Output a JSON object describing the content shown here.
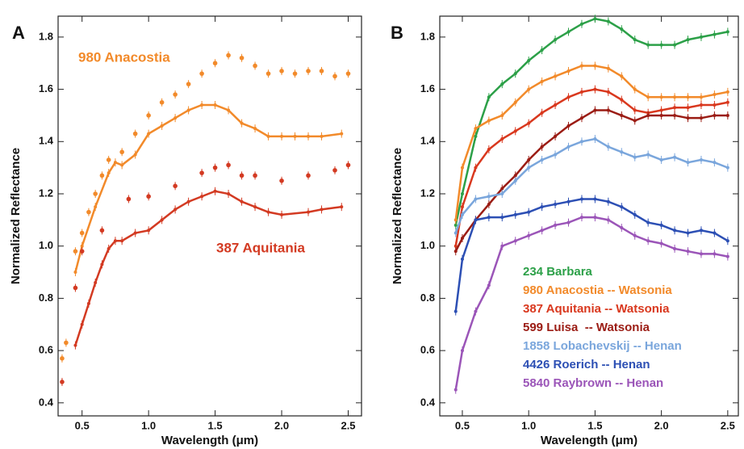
{
  "chart_data": [
    {
      "type": "line",
      "panel_label": "A",
      "xlabel": "Wavelength (μm)",
      "ylabel": "Normalized Reflectance",
      "xlim": [
        0.32,
        2.6
      ],
      "ylim": [
        0.35,
        1.88
      ],
      "xticks": [
        0.5,
        {
          "value": 1,
          "label": "1.0"
        },
        1.5,
        {
          "value": 2,
          "label": "2.0"
        },
        2.5
      ],
      "yticks": [
        0.4,
        0.6,
        0.8,
        {
          "value": 1,
          "label": "1.0"
        },
        1.2,
        1.4,
        1.6,
        1.8
      ],
      "series": [
        {
          "name": "980 Anacostia",
          "color": "#f28a2a",
          "line": false,
          "x": [
            0.35,
            0.38,
            0.45,
            0.5,
            0.55,
            0.6,
            0.65,
            0.7,
            0.8,
            0.9,
            1.0,
            1.1,
            1.2,
            1.3,
            1.4,
            1.5,
            1.6,
            1.7,
            1.8,
            1.9,
            2.0,
            2.1,
            2.2,
            2.3,
            2.4,
            2.5
          ],
          "values": [
            0.57,
            0.63,
            0.98,
            1.05,
            1.13,
            1.2,
            1.27,
            1.33,
            1.36,
            1.43,
            1.5,
            1.55,
            1.58,
            1.62,
            1.66,
            1.7,
            1.73,
            1.72,
            1.69,
            1.66,
            1.67,
            1.66,
            1.67,
            1.67,
            1.65,
            1.66
          ]
        },
        {
          "color": "#f28a2a",
          "line": true,
          "x": [
            0.45,
            0.5,
            0.6,
            0.7,
            0.75,
            0.8,
            0.9,
            1.0,
            1.1,
            1.2,
            1.3,
            1.4,
            1.5,
            1.6,
            1.7,
            1.8,
            1.9,
            2.0,
            2.1,
            2.2,
            2.3,
            2.45
          ],
          "values": [
            0.9,
            1.0,
            1.15,
            1.28,
            1.32,
            1.31,
            1.35,
            1.43,
            1.46,
            1.49,
            1.52,
            1.54,
            1.54,
            1.52,
            1.47,
            1.45,
            1.42,
            1.42,
            1.42,
            1.42,
            1.42,
            1.43
          ]
        },
        {
          "color": "#d33a22",
          "line": false,
          "x": [
            0.35,
            0.45,
            0.5,
            0.65,
            0.85,
            1.0,
            1.2,
            1.4,
            1.5,
            1.6,
            1.7,
            1.8,
            2.0,
            2.2,
            2.4,
            2.5
          ],
          "values": [
            0.48,
            0.84,
            0.98,
            1.06,
            1.18,
            1.19,
            1.23,
            1.28,
            1.3,
            1.31,
            1.27,
            1.27,
            1.25,
            1.27,
            1.29,
            1.31
          ]
        },
        {
          "name": "387 Aquitania",
          "color": "#d33a22",
          "line": true,
          "x": [
            0.45,
            0.5,
            0.55,
            0.6,
            0.65,
            0.7,
            0.75,
            0.8,
            0.9,
            1.0,
            1.1,
            1.2,
            1.3,
            1.4,
            1.5,
            1.6,
            1.7,
            1.8,
            1.9,
            2.0,
            2.2,
            2.3,
            2.45
          ],
          "values": [
            0.62,
            0.7,
            0.78,
            0.86,
            0.93,
            0.99,
            1.02,
            1.02,
            1.05,
            1.06,
            1.1,
            1.14,
            1.17,
            1.19,
            1.21,
            1.2,
            1.17,
            1.15,
            1.13,
            1.12,
            1.13,
            1.14,
            1.15
          ]
        }
      ]
    },
    {
      "type": "line",
      "panel_label": "B",
      "xlabel": "Wavelength (μm)",
      "ylabel": "Normalized Reflectance",
      "xlim": [
        0.33,
        2.58
      ],
      "ylim": [
        0.35,
        1.88
      ],
      "xticks": [
        0.5,
        {
          "value": 1,
          "label": "1.0"
        },
        1.5,
        {
          "value": 2,
          "label": "2.0"
        },
        2.5
      ],
      "yticks": [
        0.4,
        0.6,
        0.8,
        {
          "value": 1,
          "label": "1.0"
        },
        1.2,
        1.4,
        1.6,
        1.8
      ],
      "x": [
        0.45,
        0.5,
        0.6,
        0.7,
        0.8,
        0.9,
        1.0,
        1.1,
        1.2,
        1.3,
        1.4,
        1.5,
        1.6,
        1.7,
        1.8,
        1.9,
        2.0,
        2.1,
        2.2,
        2.3,
        2.4,
        2.5
      ],
      "series": [
        {
          "name": "234 Barbara",
          "color": "#2ca048",
          "line": true,
          "values": [
            1.08,
            1.2,
            1.42,
            1.57,
            1.62,
            1.66,
            1.71,
            1.75,
            1.79,
            1.82,
            1.85,
            1.87,
            1.86,
            1.83,
            1.79,
            1.77,
            1.77,
            1.77,
            1.79,
            1.8,
            1.81,
            1.82
          ]
        },
        {
          "name": "980 Anacostia -- Watsonia",
          "color": "#f28a2a",
          "line": true,
          "values": [
            1.1,
            1.3,
            1.45,
            1.48,
            1.5,
            1.55,
            1.6,
            1.63,
            1.65,
            1.67,
            1.69,
            1.69,
            1.68,
            1.65,
            1.6,
            1.57,
            1.57,
            1.57,
            1.57,
            1.57,
            1.58,
            1.59
          ]
        },
        {
          "name": "387 Aquitania -- Watsonia",
          "color": "#d9381e",
          "line": true,
          "values": [
            1.0,
            1.15,
            1.3,
            1.37,
            1.41,
            1.44,
            1.47,
            1.51,
            1.54,
            1.57,
            1.59,
            1.6,
            1.59,
            1.56,
            1.52,
            1.51,
            1.52,
            1.53,
            1.53,
            1.54,
            1.54,
            1.55
          ]
        },
        {
          "name": "599 Luisa  -- Watsonia",
          "color": "#9b1c14",
          "line": true,
          "values": [
            0.98,
            1.03,
            1.1,
            1.16,
            1.22,
            1.27,
            1.33,
            1.38,
            1.42,
            1.46,
            1.49,
            1.52,
            1.52,
            1.5,
            1.48,
            1.5,
            1.5,
            1.5,
            1.49,
            1.49,
            1.5,
            1.5
          ]
        },
        {
          "name": "1858 Lobachevskij -- Henan",
          "color": "#7aa6dc",
          "line": true,
          "values": [
            1.05,
            1.12,
            1.18,
            1.19,
            1.2,
            1.25,
            1.3,
            1.33,
            1.35,
            1.38,
            1.4,
            1.41,
            1.38,
            1.36,
            1.34,
            1.35,
            1.33,
            1.34,
            1.32,
            1.33,
            1.32,
            1.3
          ]
        },
        {
          "name": "4426 Roerich -- Henan",
          "color": "#2c4fb4",
          "line": true,
          "values": [
            0.75,
            0.95,
            1.1,
            1.11,
            1.11,
            1.12,
            1.13,
            1.15,
            1.16,
            1.17,
            1.18,
            1.18,
            1.17,
            1.15,
            1.12,
            1.09,
            1.08,
            1.06,
            1.05,
            1.06,
            1.05,
            1.02
          ]
        },
        {
          "name": "5840 Raybrown -- Henan",
          "color": "#9b55b8",
          "line": true,
          "values": [
            0.45,
            0.6,
            0.75,
            0.85,
            1.0,
            1.02,
            1.04,
            1.06,
            1.08,
            1.09,
            1.11,
            1.11,
            1.1,
            1.07,
            1.04,
            1.02,
            1.01,
            0.99,
            0.98,
            0.97,
            0.97,
            0.96
          ]
        }
      ]
    }
  ]
}
